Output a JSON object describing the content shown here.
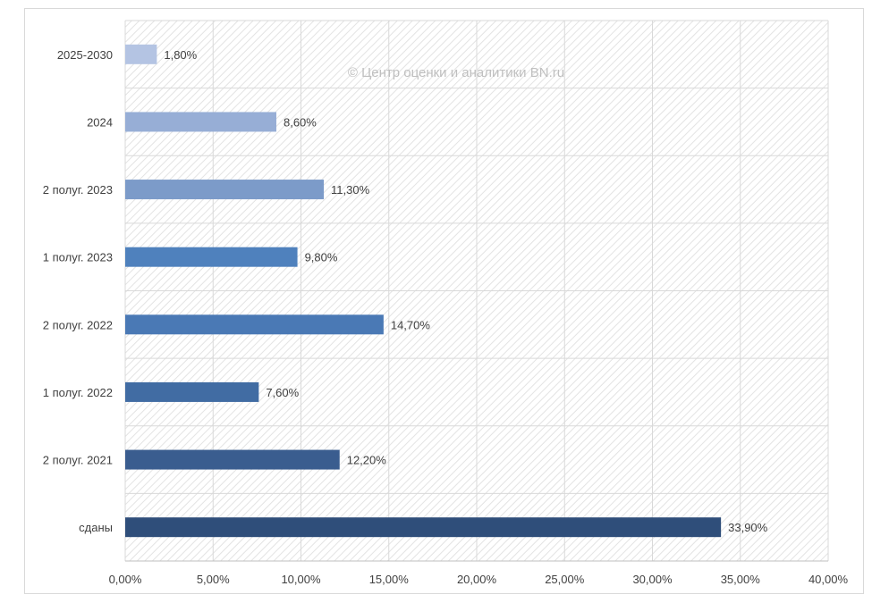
{
  "watermark": "© Центр оценки и аналитики BN.ru",
  "chart_data": {
    "type": "bar",
    "orientation": "horizontal",
    "categories": [
      "сданы",
      "2 полуг. 2021",
      "1 полуг. 2022",
      "2 полуг. 2022",
      "1 полуг. 2023",
      "2 полуг. 2023",
      "2024",
      "2025-2030"
    ],
    "values": [
      33.9,
      12.2,
      7.6,
      14.7,
      9.8,
      11.3,
      8.6,
      1.8
    ],
    "value_labels": [
      "33,90%",
      "12,20%",
      "7,60%",
      "14,70%",
      "9,80%",
      "11,30%",
      "8,60%",
      "1,80%"
    ],
    "bar_colors": [
      "#2f4e7a",
      "#3a5d8f",
      "#416ca3",
      "#4a79b5",
      "#4f81bd",
      "#7c9bc9",
      "#97aed6",
      "#b4c4e3"
    ],
    "xlim": [
      0,
      40
    ],
    "x_ticks": [
      0,
      5,
      10,
      15,
      20,
      25,
      30,
      35,
      40
    ],
    "x_tick_labels": [
      "0,00%",
      "5,00%",
      "10,00%",
      "15,00%",
      "20,00%",
      "25,00%",
      "30,00%",
      "35,00%",
      "40,00%"
    ],
    "title": "",
    "xlabel": "",
    "ylabel": "",
    "grid": true,
    "legend": "none"
  }
}
